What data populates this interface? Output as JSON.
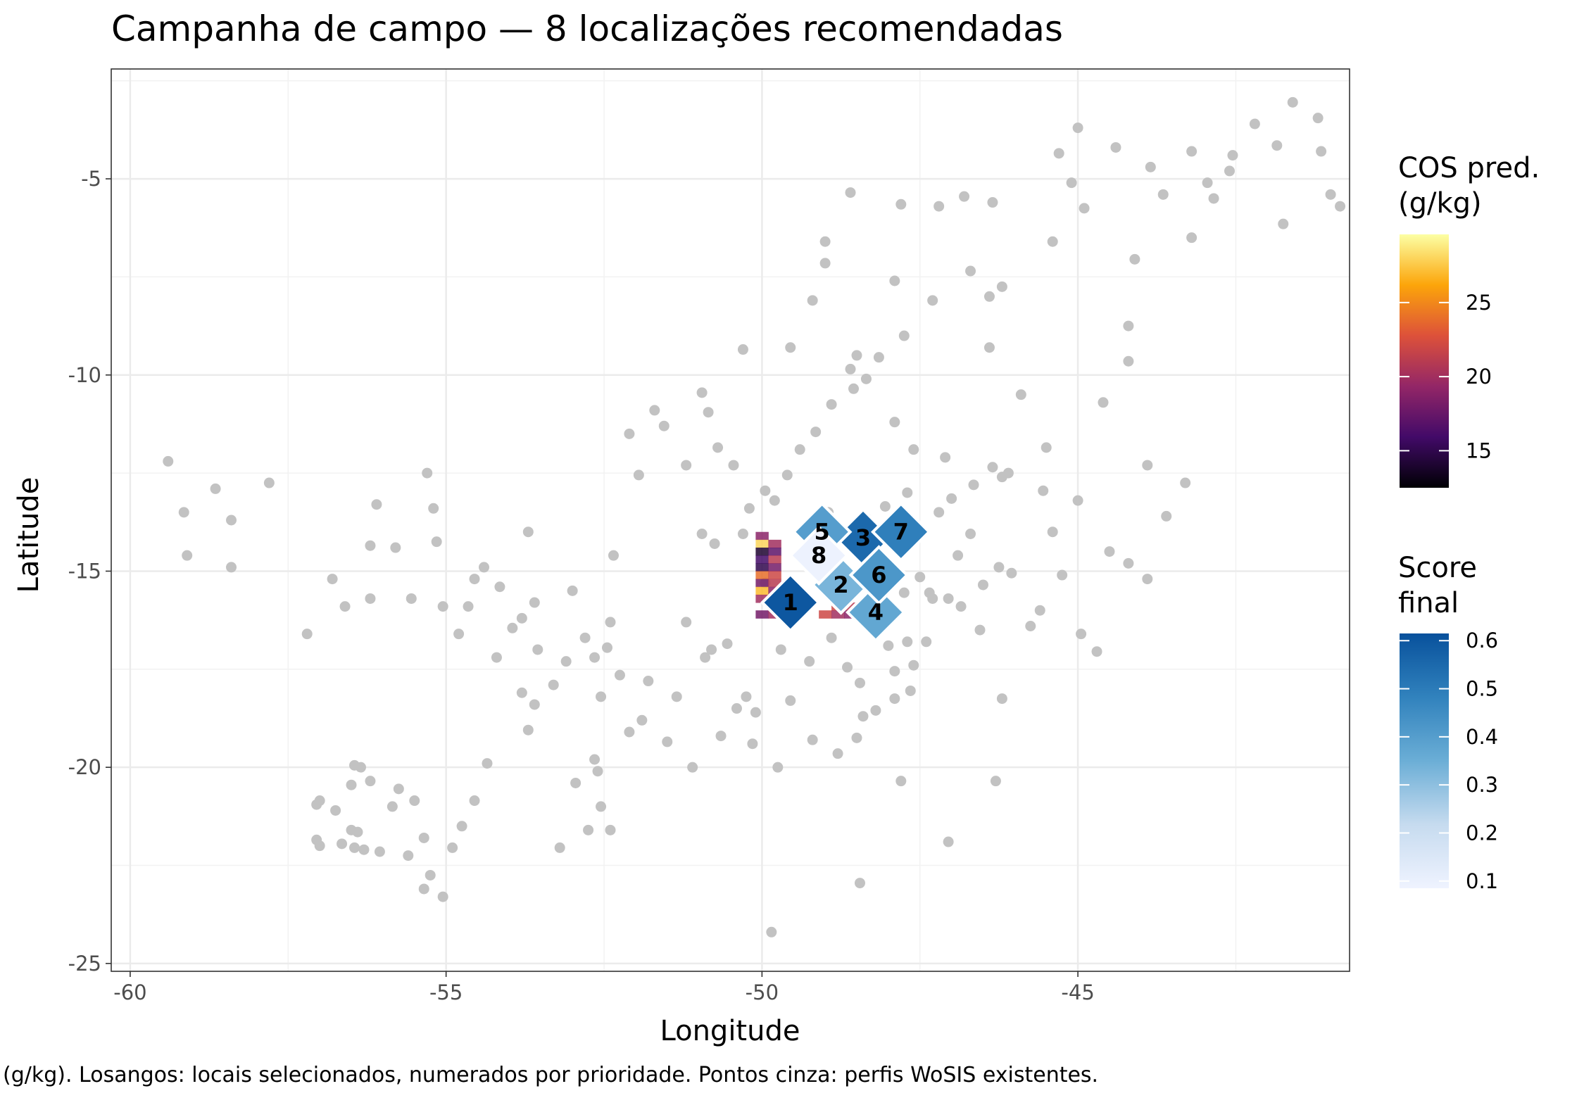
{
  "chart_data": {
    "type": "scatter",
    "title": "Campanha de campo — 8 localizações recomendadas",
    "xlabel": "Longitude",
    "ylabel": "Latitude",
    "caption": "(g/kg). Losangos: locais selecionados, numerados por prioridade. Pontos cinza: perfis WoSIS existentes.",
    "xlim": [
      -60.3,
      -40.7
    ],
    "ylim": [
      -25.2,
      -2.2
    ],
    "x_ticks": [
      -60,
      -55,
      -50,
      -45
    ],
    "x_tick_labels": [
      "-60",
      "-55",
      "-50",
      "-45"
    ],
    "y_ticks": [
      -5,
      -10,
      -15,
      -20,
      -25
    ],
    "y_tick_labels": [
      "-5",
      "-10",
      "-15",
      "-20",
      "-25"
    ],
    "grid": true,
    "legend_placement": "right",
    "legends": [
      {
        "title_lines": [
          "COS pred.",
          "(g/kg)"
        ],
        "palette": "inferno",
        "range": [
          12.5,
          29.6
        ],
        "ticks": [
          15,
          20,
          25
        ],
        "tick_labels": [
          "15",
          "20",
          "25"
        ]
      },
      {
        "title_lines": [
          "Score",
          "final"
        ],
        "palette": "blues",
        "range": [
          0.085,
          0.615
        ],
        "ticks": [
          0.1,
          0.2,
          0.3,
          0.4,
          0.5,
          0.6
        ],
        "tick_labels": [
          "0.1",
          "0.2",
          "0.3",
          "0.4",
          "0.5",
          "0.6"
        ]
      }
    ],
    "raster": {
      "name": "COS pred. (g/kg)",
      "x_edges": [
        -50.1,
        -49.9,
        -49.7,
        -49.5,
        -49.3,
        -49.1,
        -48.9,
        -48.7,
        -48.5,
        -48.3,
        -48.1,
        -47.9,
        -47.7,
        -47.5
      ],
      "y_edges": [
        -14.0,
        -14.2,
        -14.4,
        -14.6,
        -14.8,
        -15.0,
        -15.2,
        -15.4,
        -15.6,
        -15.8,
        -16.0,
        -16.2
      ],
      "values": [
        [
          19,
          null,
          null,
          null,
          null,
          null,
          null,
          null,
          null,
          null,
          null,
          null,
          null
        ],
        [
          28,
          20,
          null,
          null,
          null,
          null,
          null,
          null,
          null,
          null,
          null,
          null,
          null
        ],
        [
          14,
          17,
          null,
          null,
          null,
          null,
          null,
          null,
          null,
          null,
          null,
          null,
          null
        ],
        [
          16,
          21,
          null,
          null,
          null,
          null,
          null,
          null,
          null,
          null,
          null,
          null,
          null
        ],
        [
          15,
          18,
          null,
          null,
          null,
          null,
          null,
          null,
          null,
          null,
          null,
          null,
          null
        ],
        [
          24,
          22,
          null,
          null,
          null,
          null,
          null,
          null,
          null,
          null,
          null,
          null,
          null
        ],
        [
          18,
          21,
          null,
          null,
          null,
          null,
          null,
          null,
          null,
          null,
          null,
          null,
          null
        ],
        [
          27,
          19,
          null,
          null,
          null,
          null,
          null,
          null,
          null,
          null,
          null,
          null,
          null
        ],
        [
          20,
          23,
          null,
          null,
          null,
          null,
          null,
          null,
          null,
          null,
          null,
          null,
          null
        ],
        [
          null,
          null,
          null,
          null,
          null,
          null,
          22,
          21,
          null,
          null,
          null,
          null,
          null
        ],
        [
          18,
          20,
          null,
          null,
          null,
          22,
          20,
          19,
          null,
          null,
          null,
          null,
          null
        ]
      ]
    },
    "selected_sites": {
      "name": "Losangos: locais selecionados",
      "points": [
        {
          "rank": "1",
          "x": -49.55,
          "y": -15.8,
          "score": 0.6
        },
        {
          "rank": "2",
          "x": -48.75,
          "y": -15.35,
          "score": 0.33
        },
        {
          "rank": "3",
          "x": -48.4,
          "y": -14.15,
          "score": 0.55
        },
        {
          "rank": "4",
          "x": -48.2,
          "y": -16.05,
          "score": 0.37
        },
        {
          "rank": "5",
          "x": -49.05,
          "y": -14.0,
          "score": 0.4
        },
        {
          "rank": "6",
          "x": -48.15,
          "y": -15.1,
          "score": 0.42
        },
        {
          "rank": "7",
          "x": -47.8,
          "y": -14.0,
          "score": 0.49
        },
        {
          "rank": "8",
          "x": -49.1,
          "y": -14.6,
          "score": 0.09
        }
      ]
    },
    "existing_profiles": {
      "name": "Pontos cinza: perfis WoSIS existentes",
      "points": [
        [
          -59.4,
          -12.2
        ],
        [
          -59.15,
          -13.5
        ],
        [
          -59.1,
          -14.6
        ],
        [
          -58.65,
          -12.9
        ],
        [
          -58.4,
          -13.7
        ],
        [
          -58.4,
          -14.9
        ],
        [
          -57.8,
          -12.75
        ],
        [
          -57.2,
          -16.6
        ],
        [
          -56.8,
          -15.2
        ],
        [
          -56.6,
          -15.9
        ],
        [
          -56.2,
          -14.35
        ],
        [
          -56.2,
          -15.7
        ],
        [
          -56.1,
          -13.3
        ],
        [
          -55.8,
          -14.4
        ],
        [
          -55.55,
          -15.7
        ],
        [
          -55.3,
          -12.5
        ],
        [
          -55.2,
          -13.4
        ],
        [
          -55.15,
          -14.25
        ],
        [
          -55.05,
          -15.9
        ],
        [
          -54.8,
          -16.6
        ],
        [
          -54.65,
          -15.9
        ],
        [
          -54.55,
          -15.2
        ],
        [
          -54.4,
          -14.9
        ],
        [
          -54.15,
          -15.4
        ],
        [
          -54.2,
          -17.2
        ],
        [
          -53.95,
          -16.45
        ],
        [
          -53.8,
          -16.2
        ],
        [
          -53.7,
          -14.0
        ],
        [
          -53.6,
          -15.8
        ],
        [
          -53.8,
          -18.1
        ],
        [
          -53.6,
          -18.4
        ],
        [
          -53.3,
          -17.9
        ],
        [
          -53.0,
          -15.5
        ],
        [
          -52.8,
          -16.7
        ],
        [
          -52.65,
          -17.2
        ],
        [
          -52.55,
          -18.2
        ],
        [
          -52.35,
          -14.6
        ],
        [
          -52.1,
          -19.1
        ],
        [
          -52.4,
          -16.3
        ],
        [
          -52.65,
          -19.8
        ],
        [
          -52.6,
          -20.1
        ],
        [
          -52.95,
          -20.4
        ],
        [
          -52.55,
          -21.0
        ],
        [
          -52.4,
          -21.6
        ],
        [
          -52.75,
          -21.6
        ],
        [
          -51.8,
          -17.8
        ],
        [
          -51.35,
          -18.2
        ],
        [
          -51.2,
          -16.3
        ],
        [
          -50.9,
          -17.2
        ],
        [
          -50.8,
          -17.0
        ],
        [
          -50.55,
          -16.85
        ],
        [
          -50.25,
          -18.2
        ],
        [
          -50.75,
          -14.3
        ],
        [
          -49.95,
          -15.3
        ],
        [
          -49.6,
          -15.6
        ],
        [
          -49.7,
          -17.0
        ],
        [
          -49.25,
          -17.3
        ],
        [
          -50.15,
          -19.4
        ],
        [
          -49.75,
          -20.0
        ],
        [
          -48.95,
          -13.5
        ],
        [
          -48.9,
          -16.7
        ],
        [
          -48.65,
          -17.45
        ],
        [
          -48.45,
          -17.85
        ],
        [
          -48.15,
          -16.3
        ],
        [
          -48.0,
          -16.9
        ],
        [
          -47.9,
          -17.55
        ],
        [
          -47.7,
          -16.8
        ],
        [
          -47.6,
          -17.4
        ],
        [
          -47.4,
          -16.8
        ],
        [
          -47.3,
          -15.7
        ],
        [
          -46.85,
          -15.9
        ],
        [
          -46.55,
          -16.5
        ],
        [
          -46.5,
          -15.35
        ],
        [
          -46.25,
          -14.9
        ],
        [
          -46.05,
          -15.05
        ],
        [
          -45.75,
          -16.4
        ],
        [
          -45.6,
          -16.0
        ],
        [
          -45.4,
          -14.0
        ],
        [
          -45.25,
          -15.1
        ],
        [
          -44.95,
          -16.6
        ],
        [
          -44.7,
          -17.05
        ],
        [
          -44.2,
          -14.8
        ],
        [
          -43.9,
          -12.3
        ],
        [
          -43.3,
          -12.75
        ],
        [
          -43.6,
          -13.6
        ],
        [
          -43.9,
          -15.2
        ],
        [
          -44.5,
          -14.5
        ],
        [
          -45.0,
          -13.2
        ],
        [
          -45.55,
          -12.95
        ],
        [
          -45.5,
          -11.85
        ],
        [
          -44.6,
          -10.7
        ],
        [
          -44.2,
          -8.75
        ],
        [
          -44.2,
          -9.65
        ],
        [
          -44.1,
          -7.05
        ],
        [
          -43.65,
          -5.4
        ],
        [
          -43.2,
          -6.5
        ],
        [
          -42.85,
          -5.5
        ],
        [
          -42.6,
          -4.8
        ],
        [
          -42.2,
          -3.6
        ],
        [
          -41.6,
          -3.05
        ],
        [
          -41.15,
          -4.3
        ],
        [
          -41.0,
          -5.4
        ],
        [
          -40.85,
          -5.7
        ],
        [
          -41.2,
          -3.45
        ],
        [
          -41.85,
          -4.15
        ],
        [
          -41.75,
          -6.15
        ],
        [
          -42.55,
          -4.4
        ],
        [
          -42.95,
          -5.1
        ],
        [
          -43.2,
          -4.3
        ],
        [
          -43.85,
          -4.7
        ],
        [
          -44.4,
          -4.2
        ],
        [
          -45.0,
          -3.7
        ],
        [
          -45.3,
          -4.35
        ],
        [
          -45.1,
          -5.1
        ],
        [
          -44.9,
          -5.75
        ],
        [
          -45.4,
          -6.6
        ],
        [
          -46.35,
          -5.6
        ],
        [
          -46.8,
          -5.45
        ],
        [
          -47.2,
          -5.7
        ],
        [
          -47.8,
          -5.65
        ],
        [
          -48.6,
          -5.35
        ],
        [
          -49.0,
          -6.6
        ],
        [
          -49.0,
          -7.15
        ],
        [
          -47.9,
          -7.6
        ],
        [
          -46.7,
          -7.35
        ],
        [
          -46.4,
          -8.0
        ],
        [
          -46.2,
          -7.75
        ],
        [
          -46.4,
          -9.3
        ],
        [
          -47.3,
          -8.1
        ],
        [
          -47.75,
          -9.0
        ],
        [
          -48.5,
          -9.5
        ],
        [
          -49.2,
          -8.1
        ],
        [
          -49.55,
          -9.3
        ],
        [
          -50.3,
          -9.35
        ],
        [
          -50.95,
          -10.45
        ],
        [
          -50.85,
          -10.95
        ],
        [
          -51.55,
          -11.3
        ],
        [
          -51.7,
          -10.9
        ],
        [
          -52.1,
          -11.5
        ],
        [
          -51.95,
          -12.55
        ],
        [
          -51.2,
          -12.3
        ],
        [
          -50.7,
          -11.85
        ],
        [
          -50.45,
          -12.3
        ],
        [
          -50.2,
          -13.4
        ],
        [
          -49.95,
          -12.95
        ],
        [
          -49.8,
          -13.2
        ],
        [
          -49.6,
          -12.55
        ],
        [
          -49.4,
          -11.9
        ],
        [
          -49.15,
          -11.45
        ],
        [
          -48.9,
          -10.75
        ],
        [
          -48.55,
          -10.35
        ],
        [
          -48.35,
          -10.1
        ],
        [
          -48.6,
          -9.85
        ],
        [
          -48.15,
          -9.55
        ],
        [
          -47.9,
          -11.2
        ],
        [
          -47.6,
          -11.9
        ],
        [
          -47.2,
          -13.5
        ],
        [
          -47.0,
          -13.15
        ],
        [
          -46.65,
          -12.8
        ],
        [
          -46.1,
          -12.5
        ],
        [
          -46.35,
          -12.35
        ],
        [
          -46.2,
          -12.6
        ],
        [
          -46.7,
          -14.05
        ],
        [
          -46.9,
          -14.6
        ],
        [
          -47.05,
          -15.7
        ],
        [
          -47.35,
          -15.55
        ],
        [
          -47.5,
          -15.15
        ],
        [
          -47.75,
          -15.55
        ],
        [
          -48.05,
          -15.2
        ],
        [
          -48.25,
          -15.05
        ],
        [
          -47.65,
          -18.05
        ],
        [
          -47.9,
          -18.25
        ],
        [
          -48.2,
          -18.55
        ],
        [
          -48.4,
          -18.7
        ],
        [
          -48.5,
          -19.25
        ],
        [
          -48.8,
          -19.65
        ],
        [
          -49.2,
          -19.3
        ],
        [
          -49.55,
          -18.3
        ],
        [
          -50.1,
          -18.6
        ],
        [
          -50.4,
          -18.5
        ],
        [
          -50.65,
          -19.2
        ],
        [
          -51.1,
          -20.0
        ],
        [
          -51.5,
          -19.35
        ],
        [
          -51.9,
          -18.8
        ],
        [
          -52.25,
          -17.65
        ],
        [
          -52.45,
          -16.95
        ],
        [
          -53.1,
          -17.3
        ],
        [
          -53.55,
          -17.0
        ],
        [
          -53.7,
          -19.05
        ],
        [
          -54.35,
          -19.9
        ],
        [
          -54.55,
          -20.85
        ],
        [
          -54.75,
          -21.5
        ],
        [
          -54.9,
          -22.05
        ],
        [
          -55.35,
          -21.8
        ],
        [
          -55.5,
          -20.85
        ],
        [
          -55.85,
          -21.0
        ],
        [
          -56.05,
          -22.15
        ],
        [
          -56.3,
          -22.1
        ],
        [
          -56.5,
          -21.6
        ],
        [
          -56.75,
          -21.1
        ],
        [
          -57.0,
          -20.85
        ],
        [
          -57.05,
          -21.85
        ],
        [
          -56.5,
          -20.45
        ],
        [
          -56.35,
          -20.0
        ],
        [
          -56.2,
          -20.35
        ],
        [
          -56.45,
          -19.95
        ],
        [
          -55.75,
          -20.55
        ],
        [
          -55.6,
          -22.25
        ],
        [
          -55.25,
          -22.75
        ],
        [
          -55.05,
          -23.3
        ],
        [
          -55.35,
          -23.1
        ],
        [
          -53.2,
          -22.05
        ],
        [
          -57.05,
          -20.95
        ],
        [
          -56.65,
          -21.95
        ],
        [
          -56.45,
          -22.05
        ],
        [
          -56.4,
          -21.65
        ],
        [
          -57.0,
          -22.0
        ],
        [
          -48.45,
          -22.95
        ],
        [
          -49.85,
          -24.2
        ],
        [
          -47.8,
          -20.35
        ],
        [
          -46.3,
          -20.35
        ],
        [
          -46.2,
          -18.25
        ],
        [
          -47.05,
          -21.9
        ],
        [
          -47.7,
          -13.0
        ],
        [
          -47.1,
          -12.1
        ],
        [
          -45.9,
          -10.5
        ],
        [
          -50.3,
          -14.05
        ],
        [
          -50.95,
          -14.05
        ],
        [
          -49.15,
          -14.3
        ],
        [
          -49.05,
          -13.95
        ],
        [
          -48.35,
          -13.65
        ],
        [
          -48.05,
          -13.35
        ]
      ]
    }
  }
}
